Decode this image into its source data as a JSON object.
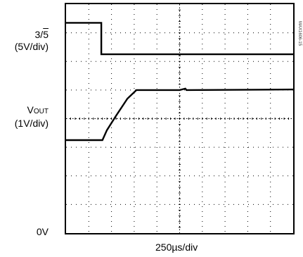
{
  "chart_data": {
    "type": "line",
    "title": "",
    "figure_id": "MAX1606-15",
    "xlabel": "250µs/div",
    "x_divisions": 10,
    "y_divisions": 8,
    "x_unit_per_div": "250µs",
    "grid": true,
    "channels": [
      {
        "label": "3/5",
        "label_overline_part": "5",
        "scale": "(5V/div)",
        "points_div": [
          [
            0,
            7.35
          ],
          [
            1.55,
            7.35
          ],
          [
            1.55,
            6.25
          ],
          [
            10,
            6.25
          ]
        ]
      },
      {
        "label_main": "V",
        "label_sub": "OUT",
        "scale": "(1V/div)",
        "points_div": [
          [
            0,
            3.25
          ],
          [
            1.6,
            3.25
          ],
          [
            1.8,
            3.6
          ],
          [
            2.2,
            4.1
          ],
          [
            2.7,
            4.7
          ],
          [
            3.1,
            5.0
          ],
          [
            5.0,
            5.0
          ],
          [
            5.25,
            5.05
          ],
          [
            5.3,
            5.0
          ],
          [
            10,
            5.02
          ]
        ]
      }
    ],
    "ground_label": "0V"
  }
}
